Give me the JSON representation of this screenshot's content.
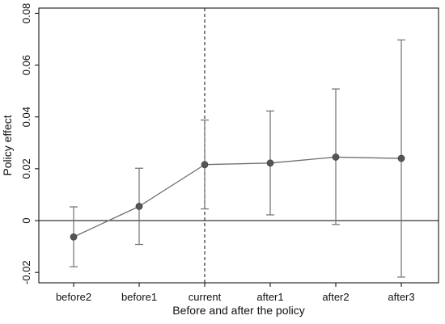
{
  "chart_data": {
    "type": "line",
    "title": "",
    "xlabel": "Before and after the policy",
    "ylabel": "Policy effect",
    "categories": [
      "before2",
      "before1",
      "current",
      "after1",
      "after2",
      "after3"
    ],
    "series": [
      {
        "values": [
          -0.0063,
          0.0055,
          0.0216,
          0.0222,
          0.0245,
          0.024
        ],
        "ci_lower": [
          -0.0178,
          -0.0092,
          0.0045,
          0.0022,
          -0.0015,
          -0.0218
        ],
        "ci_upper": [
          0.0053,
          0.0202,
          0.0388,
          0.0423,
          0.0508,
          0.0697
        ]
      }
    ],
    "ylim": [
      -0.024,
      0.082
    ],
    "yticks": [
      -0.02,
      0,
      0.02,
      0.04,
      0.06,
      0.08
    ],
    "ytick_labels": [
      "-0.02",
      "0",
      "0.02",
      "0.04",
      "0.06",
      "0.08"
    ],
    "reference_line_y": 0,
    "vertical_reference_category": "current",
    "grid": false,
    "colors": {
      "series": "#707070",
      "marker": "#555555",
      "axis": "#000000",
      "reference": "#333333"
    }
  }
}
